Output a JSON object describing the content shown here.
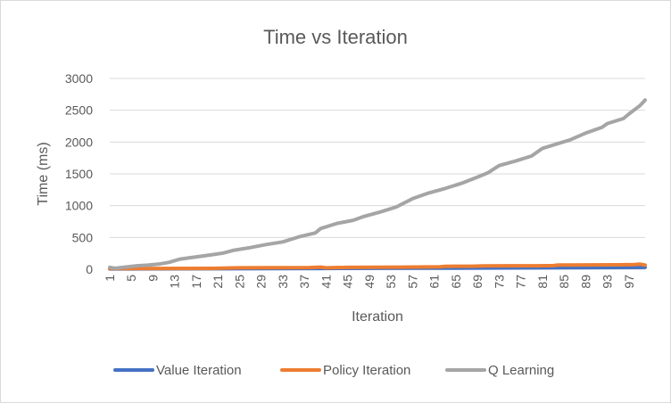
{
  "chart_data": {
    "type": "line",
    "title": "Time vs Iteration",
    "xlabel": "Iteration",
    "ylabel": "Time (ms)",
    "ylim": [
      0,
      3000
    ],
    "y_ticks": [
      0,
      500,
      1000,
      1500,
      2000,
      2500,
      3000
    ],
    "x_range": [
      1,
      100
    ],
    "x_tick_labels": [
      "1",
      "5",
      "9",
      "13",
      "17",
      "21",
      "25",
      "29",
      "33",
      "37",
      "41",
      "45",
      "49",
      "53",
      "57",
      "61",
      "65",
      "69",
      "73",
      "77",
      "81",
      "85",
      "89",
      "93",
      "97"
    ],
    "grid": true,
    "legend_position": "bottom",
    "series": [
      {
        "name": "Value Iteration",
        "color": "#4472c4",
        "points": [
          [
            1,
            5
          ],
          [
            10,
            7
          ],
          [
            20,
            9
          ],
          [
            30,
            11
          ],
          [
            40,
            13
          ],
          [
            50,
            15
          ],
          [
            60,
            17
          ],
          [
            70,
            20
          ],
          [
            80,
            23
          ],
          [
            90,
            26
          ],
          [
            100,
            30
          ]
        ]
      },
      {
        "name": "Policy Iteration",
        "color": "#ed7d31",
        "points": [
          [
            1,
            10
          ],
          [
            10,
            12
          ],
          [
            20,
            14
          ],
          [
            25,
            22
          ],
          [
            30,
            24
          ],
          [
            38,
            26
          ],
          [
            40,
            34
          ],
          [
            41,
            22
          ],
          [
            45,
            30
          ],
          [
            50,
            32
          ],
          [
            55,
            34
          ],
          [
            60,
            36
          ],
          [
            62,
            38
          ],
          [
            63,
            46
          ],
          [
            68,
            48
          ],
          [
            70,
            52
          ],
          [
            75,
            54
          ],
          [
            80,
            55
          ],
          [
            83,
            58
          ],
          [
            84,
            66
          ],
          [
            90,
            68
          ],
          [
            95,
            70
          ],
          [
            98,
            74
          ],
          [
            99,
            82
          ],
          [
            100,
            66
          ]
        ]
      },
      {
        "name": "Q Learning",
        "color": "#a5a5a5",
        "points": [
          [
            1,
            30
          ],
          [
            2,
            15
          ],
          [
            4,
            35
          ],
          [
            6,
            55
          ],
          [
            8,
            65
          ],
          [
            10,
            80
          ],
          [
            12,
            110
          ],
          [
            14,
            160
          ],
          [
            17,
            195
          ],
          [
            20,
            230
          ],
          [
            22,
            255
          ],
          [
            24,
            300
          ],
          [
            27,
            340
          ],
          [
            30,
            390
          ],
          [
            33,
            430
          ],
          [
            36,
            510
          ],
          [
            39,
            570
          ],
          [
            40,
            640
          ],
          [
            43,
            720
          ],
          [
            46,
            770
          ],
          [
            48,
            830
          ],
          [
            51,
            900
          ],
          [
            54,
            980
          ],
          [
            57,
            1110
          ],
          [
            60,
            1200
          ],
          [
            63,
            1270
          ],
          [
            66,
            1350
          ],
          [
            69,
            1450
          ],
          [
            71,
            1520
          ],
          [
            73,
            1630
          ],
          [
            76,
            1700
          ],
          [
            79,
            1780
          ],
          [
            81,
            1900
          ],
          [
            84,
            1980
          ],
          [
            86,
            2030
          ],
          [
            89,
            2140
          ],
          [
            92,
            2230
          ],
          [
            93,
            2290
          ],
          [
            96,
            2370
          ],
          [
            97,
            2440
          ],
          [
            99,
            2570
          ],
          [
            100,
            2660
          ]
        ]
      }
    ]
  }
}
